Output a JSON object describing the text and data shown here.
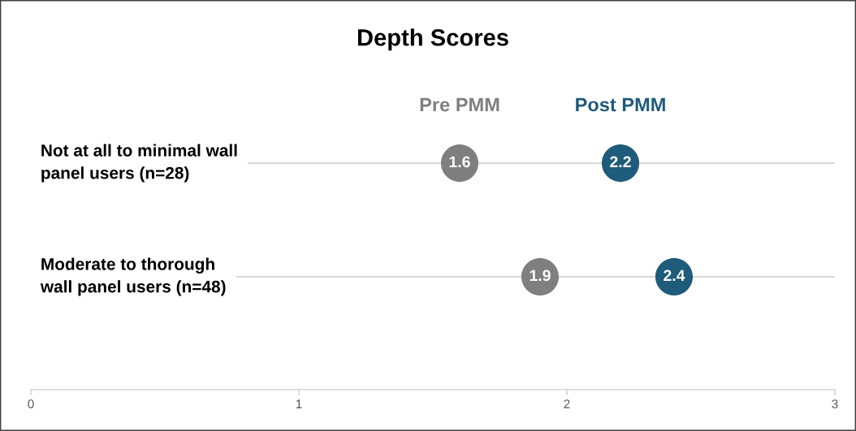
{
  "chart_data": {
    "type": "scatter",
    "title": "Depth Scores",
    "orientation": "horizontal",
    "categories": [
      "Not at all to minimal wall\npanel users (n=28)",
      "Moderate to thorough\nwall panel users (n=48)"
    ],
    "series": [
      {
        "name": "Pre PMM",
        "color": "#7f7f7f",
        "values": [
          1.6,
          1.9
        ]
      },
      {
        "name": "Post PMM",
        "color": "#1f5b7a",
        "values": [
          2.2,
          2.4
        ]
      }
    ],
    "xlim": [
      0,
      3
    ],
    "xticks": [
      0,
      1,
      2,
      3
    ],
    "grid": "y",
    "legend": "top",
    "marker": "circle",
    "data_labels": true
  }
}
